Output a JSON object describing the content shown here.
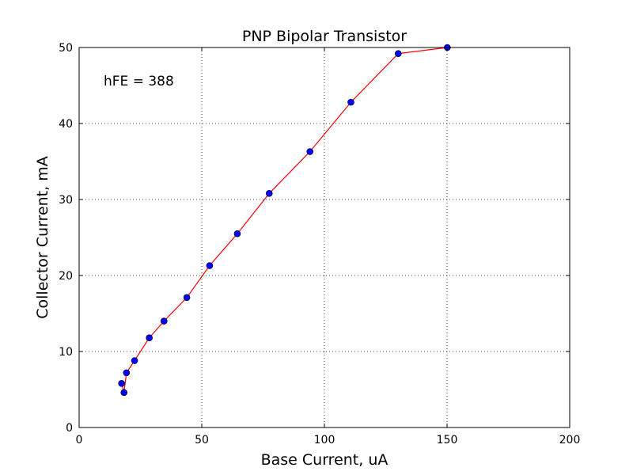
{
  "chart_data": {
    "type": "line",
    "title": "PNP Bipolar Transistor",
    "xlabel": "Base Current, uA",
    "ylabel": "Collector Current, mA",
    "xlim": [
      0,
      200
    ],
    "ylim": [
      0,
      50
    ],
    "xticks": [
      0,
      50,
      100,
      150,
      200
    ],
    "yticks": [
      0,
      10,
      20,
      30,
      40,
      50
    ],
    "grid": true,
    "annotation": "hFE = 388",
    "series": [
      {
        "line_color": "#ff0000",
        "marker_color": "#0000ff",
        "points": [
          {
            "x": 17.3,
            "y": 5.8
          },
          {
            "x": 18.3,
            "y": 4.6
          },
          {
            "x": 19.3,
            "y": 7.2
          },
          {
            "x": 22.6,
            "y": 8.8
          },
          {
            "x": 28.6,
            "y": 11.8
          },
          {
            "x": 34.6,
            "y": 14.0
          },
          {
            "x": 43.9,
            "y": 17.1
          },
          {
            "x": 53.2,
            "y": 21.3
          },
          {
            "x": 64.5,
            "y": 25.5
          },
          {
            "x": 77.5,
            "y": 30.8
          },
          {
            "x": 94.1,
            "y": 36.3
          },
          {
            "x": 110.8,
            "y": 42.8
          },
          {
            "x": 130.1,
            "y": 49.2
          },
          {
            "x": 150.1,
            "y": 50.0
          }
        ]
      }
    ]
  }
}
